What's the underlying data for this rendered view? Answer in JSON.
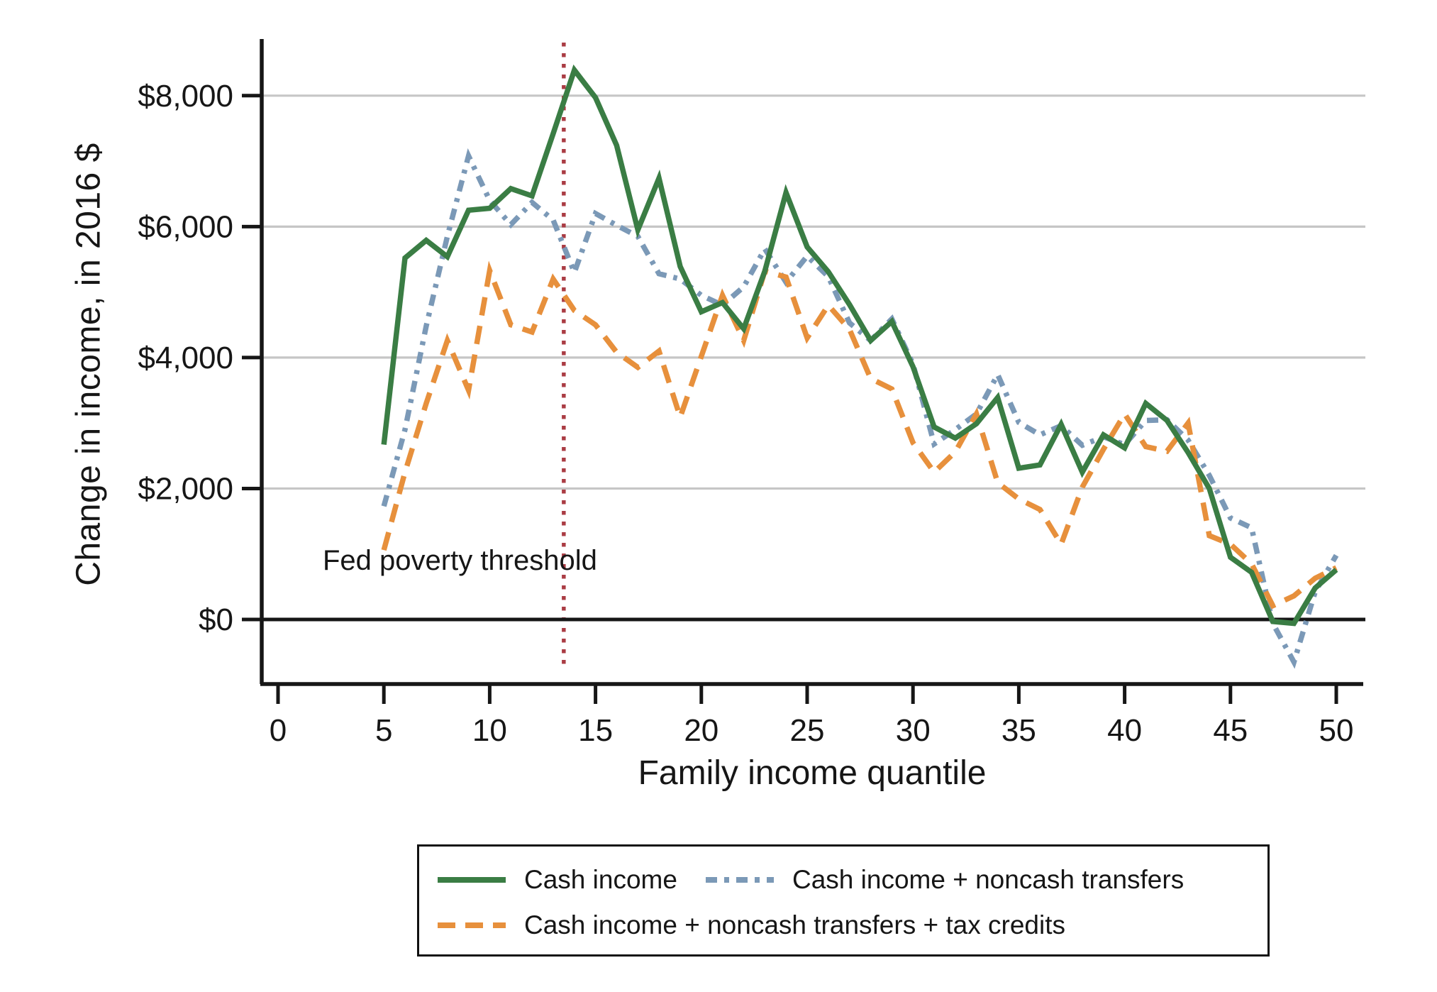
{
  "labels": {
    "y_axis_title": "Change in income, in 2016 $",
    "x_axis_title": "Family income quantile"
  },
  "legend": {
    "items": [
      {
        "label": "Cash income",
        "color": "#3a7d44",
        "style": "solid"
      },
      {
        "label": "Cash income + noncash transfers",
        "color": "#7b99b7",
        "style": "dash-dot"
      },
      {
        "label": "Cash income + noncash transfers + tax credits",
        "color": "#e7903c",
        "style": "dashed"
      }
    ]
  },
  "chart_data": {
    "type": "line",
    "title": "",
    "xlabel": "Family income quantile",
    "ylabel": "Change in income, in 2016 $",
    "xlim": [
      -0.8,
      51.3
    ],
    "ylim": [
      -1000,
      8900
    ],
    "grid": "horizontal",
    "legend_position": "bottom",
    "x_axis": {
      "ticks": [
        0,
        5,
        10,
        15,
        20,
        25,
        30,
        35,
        40,
        45,
        50
      ]
    },
    "y_axis": {
      "ticks": [
        {
          "value": 0,
          "label": "$0"
        },
        {
          "value": 2000,
          "label": "$2,000"
        },
        {
          "value": 4000,
          "label": "$4,000"
        },
        {
          "value": 6000,
          "label": "$6,000"
        },
        {
          "value": 8000,
          "label": "$8,000"
        }
      ]
    },
    "threshold": {
      "x": 13.5,
      "label": "Fed poverty threshold",
      "color": "#aa3c44"
    },
    "x": [
      5,
      6,
      7,
      8,
      9,
      10,
      11,
      12,
      13,
      14,
      15,
      16,
      17,
      18,
      19,
      20,
      21,
      22,
      23,
      24,
      25,
      26,
      27,
      28,
      29,
      30,
      31,
      32,
      33,
      34,
      35,
      36,
      37,
      38,
      39,
      40,
      41,
      42,
      43,
      44,
      45,
      46,
      47,
      48,
      49,
      50
    ],
    "series": [
      {
        "name": "Cash income",
        "color": "#3a7d44",
        "dash": "solid",
        "values": [
          2670,
          5520,
          5790,
          5540,
          6250,
          6280,
          6580,
          6470,
          7420,
          8390,
          7970,
          7240,
          5950,
          6740,
          5390,
          4700,
          4840,
          4440,
          5320,
          6520,
          5690,
          5310,
          4810,
          4260,
          4550,
          3860,
          2940,
          2770,
          2990,
          3390,
          2310,
          2360,
          2980,
          2250,
          2820,
          2620,
          3300,
          3040,
          2550,
          2000,
          950,
          720,
          -30,
          -60,
          480,
          760
        ]
      },
      {
        "name": "Cash income + noncash transfers",
        "color": "#7b99b7",
        "dash": "dash-dot",
        "values": [
          1730,
          2900,
          4480,
          5850,
          7080,
          6400,
          6030,
          6370,
          6100,
          5300,
          6200,
          6020,
          5850,
          5280,
          5200,
          4950,
          4800,
          5080,
          5660,
          5150,
          5550,
          5235,
          4530,
          4260,
          4590,
          3900,
          2680,
          2900,
          3140,
          3740,
          3010,
          2820,
          2960,
          2660,
          2790,
          2670,
          3040,
          3050,
          2740,
          2200,
          1550,
          1400,
          -60,
          -650,
          420,
          980
        ]
      },
      {
        "name": "Cash income + noncash transfers + tax credits",
        "color": "#e7903c",
        "dash": "dashed",
        "values": [
          1060,
          2250,
          3300,
          4260,
          3500,
          5330,
          4500,
          4390,
          5200,
          4720,
          4500,
          4080,
          3850,
          4100,
          3090,
          4020,
          4950,
          4260,
          5320,
          5230,
          4300,
          4800,
          4430,
          3680,
          3520,
          2700,
          2250,
          2560,
          3140,
          2090,
          1840,
          1680,
          1150,
          2020,
          2600,
          3140,
          2640,
          2570,
          3000,
          1280,
          1150,
          850,
          210,
          360,
          630,
          790
        ]
      }
    ],
    "colors": {
      "grid": "#c6c6c6",
      "axis": "#161616",
      "zero_line": "#161616",
      "background": "#ffffff"
    }
  }
}
